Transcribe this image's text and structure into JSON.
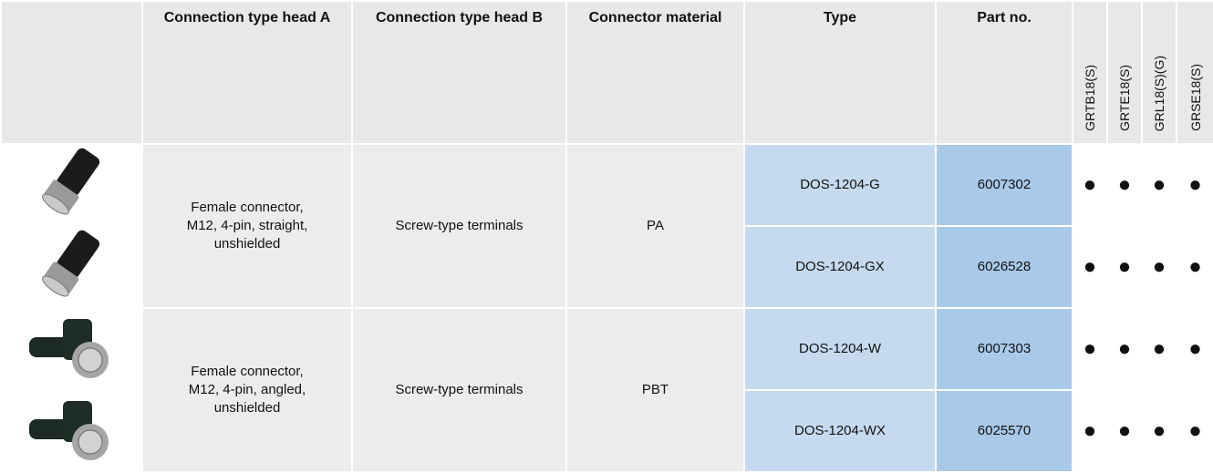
{
  "table": {
    "header": [
      "Connection type head A",
      "Connection type head B",
      "Connector material",
      "Type",
      "Part no."
    ],
    "variant_headers": [
      "GRTB18(S)",
      "GRTE18(S)",
      "GRL18(S)(G)",
      "GRSE18(S)"
    ],
    "groups": [
      {
        "head_a": "Female connector,\nM12, 4-pin, straight,\nunshielded",
        "head_b": "Screw-type terminals",
        "material": "PA",
        "rows": [
          {
            "type": "DOS-1204-G",
            "part_no": "6007302",
            "compat": [
              "●",
              "●",
              "●",
              "●"
            ]
          },
          {
            "type": "DOS-1204-GX",
            "part_no": "6026528",
            "compat": [
              "●",
              "●",
              "●",
              "●"
            ]
          }
        ]
      },
      {
        "head_a": "Female connector,\nM12, 4-pin, angled,\nunshielded",
        "head_b": "Screw-type terminals",
        "material": "PBT",
        "rows": [
          {
            "type": "DOS-1204-W",
            "part_no": "6007303",
            "compat": [
              "●",
              "●",
              "●",
              "●"
            ]
          },
          {
            "type": "DOS-1204-WX",
            "part_no": "6025570",
            "compat": [
              "●",
              "●",
              "●",
              "●"
            ]
          }
        ]
      }
    ]
  }
}
